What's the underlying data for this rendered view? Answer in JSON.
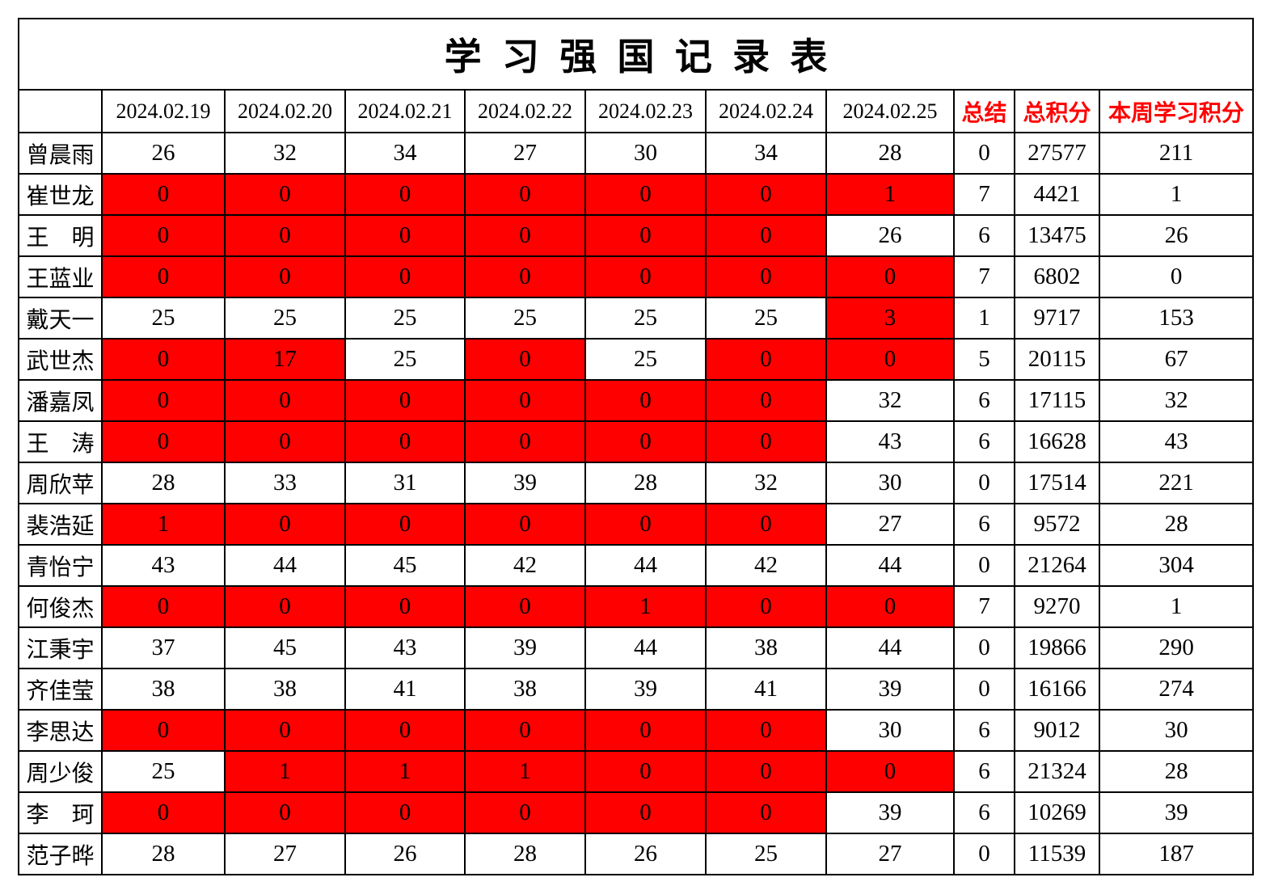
{
  "title": "学习强国记录表",
  "colors": {
    "red_bg": "#ff0000",
    "dark_red_text": "#b00000",
    "red_text": "#ff0000",
    "grid_line": "#000000"
  },
  "header": {
    "name_col": "",
    "dates": [
      "2024.02.19",
      "2024.02.20",
      "2024.02.21",
      "2024.02.22",
      "2024.02.23",
      "2024.02.24",
      "2024.02.25"
    ],
    "summary": "总结",
    "total": "总积分",
    "week": "本周学习积分"
  },
  "rows": [
    {
      "name": "曾晨雨",
      "cells": [
        {
          "v": "26",
          "s": "w"
        },
        {
          "v": "32",
          "s": "w"
        },
        {
          "v": "34",
          "s": "w"
        },
        {
          "v": "27",
          "s": "w"
        },
        {
          "v": "30",
          "s": "w"
        },
        {
          "v": "34",
          "s": "w"
        },
        {
          "v": "28",
          "s": "w"
        }
      ],
      "summary": "0",
      "total": "27577",
      "week": "211"
    },
    {
      "name": "崔世龙",
      "cells": [
        {
          "v": "0",
          "s": "rb"
        },
        {
          "v": "0",
          "s": "rb"
        },
        {
          "v": "0",
          "s": "rb"
        },
        {
          "v": "0",
          "s": "rb"
        },
        {
          "v": "0",
          "s": "rb"
        },
        {
          "v": "0",
          "s": "rb"
        },
        {
          "v": "1",
          "s": "rb"
        }
      ],
      "summary": "7",
      "total": "4421",
      "week": "1"
    },
    {
      "name": "王　明",
      "cells": [
        {
          "v": "0",
          "s": "rd"
        },
        {
          "v": "0",
          "s": "rd"
        },
        {
          "v": "0",
          "s": "rd"
        },
        {
          "v": "0",
          "s": "rd"
        },
        {
          "v": "0",
          "s": "rd"
        },
        {
          "v": "0",
          "s": "rd"
        },
        {
          "v": "26",
          "s": "w"
        }
      ],
      "summary": "6",
      "total": "13475",
      "week": "26"
    },
    {
      "name": "王蓝业",
      "cells": [
        {
          "v": "0",
          "s": "rd"
        },
        {
          "v": "0",
          "s": "rd"
        },
        {
          "v": "0",
          "s": "rd"
        },
        {
          "v": "0",
          "s": "rd"
        },
        {
          "v": "0",
          "s": "rd"
        },
        {
          "v": "0",
          "s": "rd"
        },
        {
          "v": "0",
          "s": "rd"
        }
      ],
      "summary": "7",
      "total": "6802",
      "week": "0"
    },
    {
      "name": "戴天一",
      "cells": [
        {
          "v": "25",
          "s": "w"
        },
        {
          "v": "25",
          "s": "w"
        },
        {
          "v": "25",
          "s": "w"
        },
        {
          "v": "25",
          "s": "w"
        },
        {
          "v": "25",
          "s": "w"
        },
        {
          "v": "25",
          "s": "w"
        },
        {
          "v": "3",
          "s": "rd"
        }
      ],
      "summary": "1",
      "total": "9717",
      "week": "153"
    },
    {
      "name": "武世杰",
      "cells": [
        {
          "v": "0",
          "s": "rd"
        },
        {
          "v": "17",
          "s": "rd"
        },
        {
          "v": "25",
          "s": "w"
        },
        {
          "v": "0",
          "s": "rd"
        },
        {
          "v": "25",
          "s": "w"
        },
        {
          "v": "0",
          "s": "rd"
        },
        {
          "v": "0",
          "s": "rd"
        }
      ],
      "summary": "5",
      "total": "20115",
      "week": "67"
    },
    {
      "name": "潘嘉凤",
      "cells": [
        {
          "v": "0",
          "s": "rd"
        },
        {
          "v": "0",
          "s": "rd"
        },
        {
          "v": "0",
          "s": "rd"
        },
        {
          "v": "0",
          "s": "rd"
        },
        {
          "v": "0",
          "s": "rd"
        },
        {
          "v": "0",
          "s": "rd"
        },
        {
          "v": "32",
          "s": "w"
        }
      ],
      "summary": "6",
      "total": "17115",
      "week": "32"
    },
    {
      "name": "王　涛",
      "cells": [
        {
          "v": "0",
          "s": "rb"
        },
        {
          "v": "0",
          "s": "rb"
        },
        {
          "v": "0",
          "s": "rb"
        },
        {
          "v": "0",
          "s": "rb"
        },
        {
          "v": "0",
          "s": "rb"
        },
        {
          "v": "0",
          "s": "rb"
        },
        {
          "v": "43",
          "s": "w"
        }
      ],
      "summary": "6",
      "total": "16628",
      "week": "43"
    },
    {
      "name": "周欣苹",
      "cells": [
        {
          "v": "28",
          "s": "w"
        },
        {
          "v": "33",
          "s": "w"
        },
        {
          "v": "31",
          "s": "w"
        },
        {
          "v": "39",
          "s": "w"
        },
        {
          "v": "28",
          "s": "w"
        },
        {
          "v": "32",
          "s": "w"
        },
        {
          "v": "30",
          "s": "w"
        }
      ],
      "summary": "0",
      "total": "17514",
      "week": "221"
    },
    {
      "name": "裴浩延",
      "cells": [
        {
          "v": "1",
          "s": "rb"
        },
        {
          "v": "0",
          "s": "rb"
        },
        {
          "v": "0",
          "s": "rb"
        },
        {
          "v": "0",
          "s": "rb"
        },
        {
          "v": "0",
          "s": "rb"
        },
        {
          "v": "0",
          "s": "rb"
        },
        {
          "v": "27",
          "s": "w"
        }
      ],
      "summary": "6",
      "total": "9572",
      "week": "28"
    },
    {
      "name": "青怡宁",
      "cells": [
        {
          "v": "43",
          "s": "w"
        },
        {
          "v": "44",
          "s": "w"
        },
        {
          "v": "45",
          "s": "w"
        },
        {
          "v": "42",
          "s": "w"
        },
        {
          "v": "44",
          "s": "w"
        },
        {
          "v": "42",
          "s": "w"
        },
        {
          "v": "44",
          "s": "w"
        }
      ],
      "summary": "0",
      "total": "21264",
      "week": "304"
    },
    {
      "name": "何俊杰",
      "cells": [
        {
          "v": "0",
          "s": "rb"
        },
        {
          "v": "0",
          "s": "rb"
        },
        {
          "v": "0",
          "s": "rb"
        },
        {
          "v": "0",
          "s": "rb"
        },
        {
          "v": "1",
          "s": "rb"
        },
        {
          "v": "0",
          "s": "rb"
        },
        {
          "v": "0",
          "s": "rb"
        }
      ],
      "summary": "7",
      "total": "9270",
      "week": "1"
    },
    {
      "name": "江秉宇",
      "cells": [
        {
          "v": "37",
          "s": "w"
        },
        {
          "v": "45",
          "s": "w"
        },
        {
          "v": "43",
          "s": "w"
        },
        {
          "v": "39",
          "s": "w"
        },
        {
          "v": "44",
          "s": "w"
        },
        {
          "v": "38",
          "s": "w"
        },
        {
          "v": "44",
          "s": "w"
        }
      ],
      "summary": "0",
      "total": "19866",
      "week": "290"
    },
    {
      "name": "齐佳莹",
      "cells": [
        {
          "v": "38",
          "s": "w"
        },
        {
          "v": "38",
          "s": "w"
        },
        {
          "v": "41",
          "s": "w"
        },
        {
          "v": "38",
          "s": "w"
        },
        {
          "v": "39",
          "s": "w"
        },
        {
          "v": "41",
          "s": "w"
        },
        {
          "v": "39",
          "s": "w"
        }
      ],
      "summary": "0",
      "total": "16166",
      "week": "274"
    },
    {
      "name": "李思达",
      "cells": [
        {
          "v": "0",
          "s": "rb"
        },
        {
          "v": "0",
          "s": "rb"
        },
        {
          "v": "0",
          "s": "rb"
        },
        {
          "v": "0",
          "s": "rb"
        },
        {
          "v": "0",
          "s": "rb"
        },
        {
          "v": "0",
          "s": "rb"
        },
        {
          "v": "30",
          "s": "w"
        }
      ],
      "summary": "6",
      "total": "9012",
      "week": "30"
    },
    {
      "name": "周少俊",
      "cells": [
        {
          "v": "25",
          "s": "w"
        },
        {
          "v": "1",
          "s": "rb"
        },
        {
          "v": "1",
          "s": "rb"
        },
        {
          "v": "1",
          "s": "rb"
        },
        {
          "v": "0",
          "s": "rb"
        },
        {
          "v": "0",
          "s": "rb"
        },
        {
          "v": "0",
          "s": "rb"
        }
      ],
      "summary": "6",
      "total": "21324",
      "week": "28"
    },
    {
      "name": "李　珂",
      "cells": [
        {
          "v": "0",
          "s": "rb"
        },
        {
          "v": "0",
          "s": "rb"
        },
        {
          "v": "0",
          "s": "rb"
        },
        {
          "v": "0",
          "s": "rb"
        },
        {
          "v": "0",
          "s": "rb"
        },
        {
          "v": "0",
          "s": "rb"
        },
        {
          "v": "39",
          "s": "w"
        }
      ],
      "summary": "6",
      "total": "10269",
      "week": "39"
    },
    {
      "name": "范子晔",
      "cells": [
        {
          "v": "28",
          "s": "w"
        },
        {
          "v": "27",
          "s": "w"
        },
        {
          "v": "26",
          "s": "w"
        },
        {
          "v": "28",
          "s": "w"
        },
        {
          "v": "26",
          "s": "w"
        },
        {
          "v": "25",
          "s": "w"
        },
        {
          "v": "27",
          "s": "w"
        }
      ],
      "summary": "0",
      "total": "11539",
      "week": "187"
    }
  ]
}
